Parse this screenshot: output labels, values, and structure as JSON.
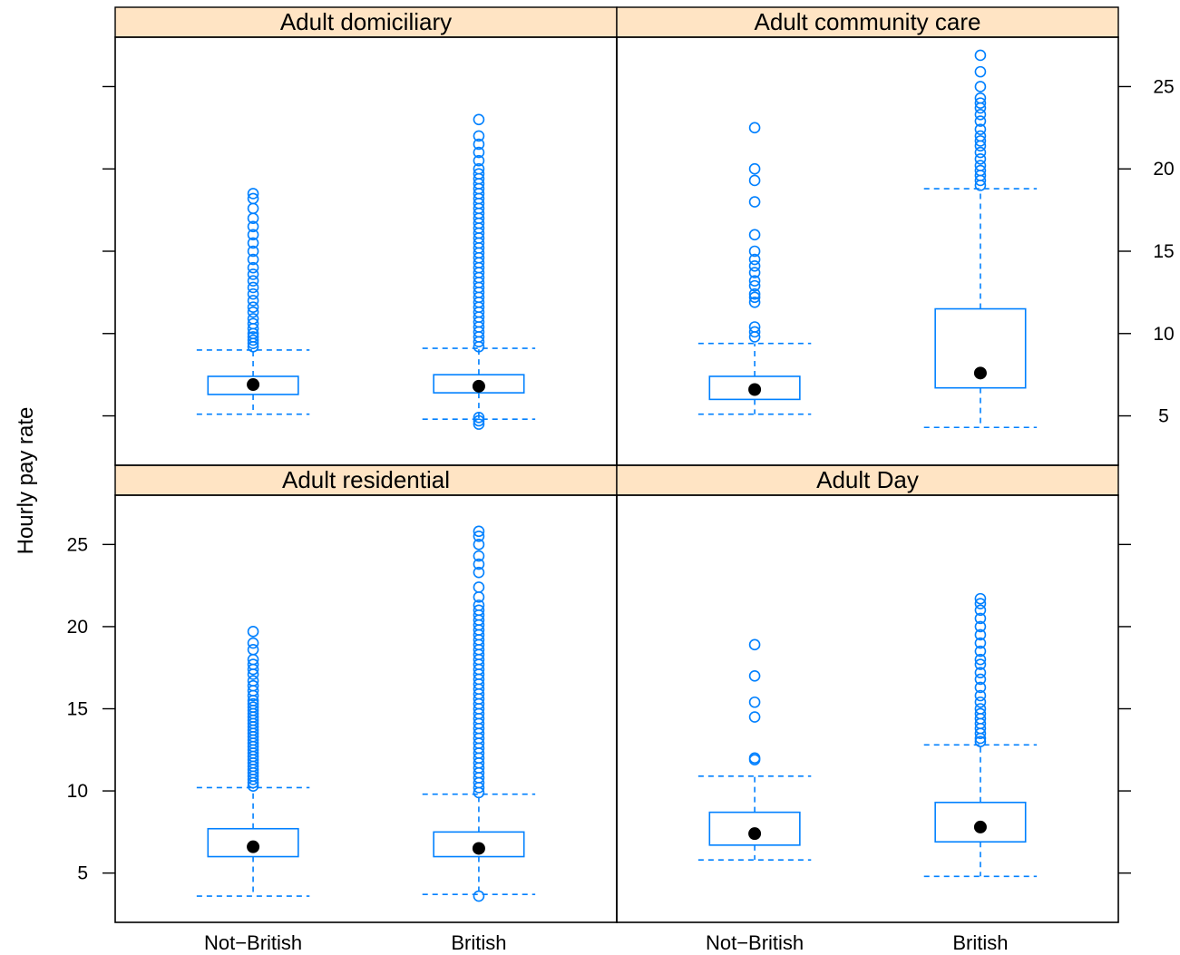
{
  "chart_data": {
    "type": "box",
    "ylabel": "Hourly pay rate",
    "ylim": [
      2,
      28
    ],
    "yticks": [
      5,
      10,
      15,
      20,
      25
    ],
    "categories": [
      "Not−British",
      "British"
    ],
    "panels": [
      {
        "title": "Adult residential",
        "boxes": [
          {
            "category": "Not−British",
            "whisker_low": 3.6,
            "q1": 6.0,
            "median": 6.6,
            "q3": 7.7,
            "whisker_high": 10.2,
            "outliers": [
              10.3,
              10.5,
              10.7,
              10.9,
              11.1,
              11.3,
              11.5,
              11.7,
              11.9,
              12.1,
              12.3,
              12.5,
              12.7,
              12.9,
              13.1,
              13.3,
              13.5,
              13.7,
              13.9,
              14.1,
              14.3,
              14.5,
              14.7,
              14.9,
              15.1,
              15.3,
              15.5,
              15.8,
              16.1,
              16.4,
              16.7,
              17.1,
              17.4,
              17.7,
              18.0,
              18.6,
              19.0,
              19.7
            ]
          },
          {
            "category": "British",
            "whisker_low": 3.7,
            "q1": 6.0,
            "median": 6.5,
            "q3": 7.5,
            "whisker_high": 9.8,
            "outliers": [
              3.6,
              9.9,
              10.2,
              10.5,
              10.8,
              11.1,
              11.4,
              11.7,
              12.0,
              12.3,
              12.6,
              12.9,
              13.2,
              13.5,
              13.8,
              14.1,
              14.4,
              14.7,
              15.0,
              15.3,
              15.6,
              15.9,
              16.2,
              16.5,
              16.8,
              17.1,
              17.4,
              17.7,
              18.0,
              18.3,
              18.6,
              18.9,
              19.2,
              19.5,
              19.8,
              20.1,
              20.4,
              20.7,
              21.0,
              21.3,
              21.8,
              22.4,
              23.3,
              23.8,
              24.3,
              25.0,
              25.5,
              25.8
            ]
          }
        ]
      },
      {
        "title": "Adult Day",
        "boxes": [
          {
            "category": "Not−British",
            "whisker_low": 5.8,
            "q1": 6.7,
            "median": 7.4,
            "q3": 8.7,
            "whisker_high": 10.9,
            "outliers": [
              11.9,
              12.0,
              14.5,
              15.4,
              17.0,
              18.9
            ]
          },
          {
            "category": "British",
            "whisker_low": 4.8,
            "q1": 6.9,
            "median": 7.8,
            "q3": 9.3,
            "whisker_high": 12.8,
            "outliers": [
              13.0,
              13.2,
              13.5,
              13.8,
              14.1,
              14.4,
              14.7,
              15.0,
              15.4,
              15.8,
              16.3,
              16.8,
              17.2,
              17.7,
              18.0,
              18.5,
              19.0,
              19.5,
              20.0,
              20.5,
              21.0,
              21.4,
              21.7
            ]
          }
        ]
      },
      {
        "title": "Adult domiciliary",
        "boxes": [
          {
            "category": "Not−British",
            "whisker_low": 5.1,
            "q1": 6.3,
            "median": 6.9,
            "q3": 7.4,
            "whisker_high": 9.0,
            "outliers": [
              9.2,
              9.4,
              9.6,
              9.8,
              10.0,
              10.3,
              10.6,
              10.9,
              11.3,
              11.6,
              12.0,
              12.4,
              12.8,
              13.2,
              13.6,
              14.0,
              14.5,
              15.0,
              15.5,
              16.0,
              16.5,
              17.0,
              17.6,
              18.2,
              18.5
            ]
          },
          {
            "category": "British",
            "whisker_low": 4.8,
            "q1": 6.4,
            "median": 6.8,
            "q3": 7.5,
            "whisker_high": 9.1,
            "outliers": [
              4.5,
              4.7,
              4.9,
              9.2,
              9.5,
              9.8,
              10.1,
              10.4,
              10.7,
              11.0,
              11.3,
              11.6,
              11.9,
              12.2,
              12.5,
              12.8,
              13.1,
              13.4,
              13.7,
              14.0,
              14.3,
              14.6,
              14.9,
              15.2,
              15.5,
              15.8,
              16.1,
              16.4,
              16.7,
              17.0,
              17.3,
              17.6,
              17.9,
              18.2,
              18.5,
              18.8,
              19.1,
              19.4,
              19.7,
              20.0,
              20.5,
              21.0,
              21.5,
              22.0,
              23.0
            ]
          }
        ]
      },
      {
        "title": "Adult community care",
        "boxes": [
          {
            "category": "Not−British",
            "whisker_low": 5.1,
            "q1": 6.0,
            "median": 6.6,
            "q3": 7.4,
            "whisker_high": 9.4,
            "outliers": [
              9.8,
              10.1,
              10.4,
              11.9,
              12.2,
              12.4,
              12.9,
              13.2,
              13.7,
              14.1,
              14.5,
              15.0,
              16.0,
              18.0,
              19.3,
              20.0,
              22.5
            ]
          },
          {
            "category": "British",
            "whisker_low": 4.3,
            "q1": 6.7,
            "median": 7.6,
            "q3": 11.5,
            "whisker_high": 18.8,
            "outliers": [
              19.0,
              19.3,
              19.6,
              19.9,
              20.2,
              20.6,
              21.0,
              21.4,
              21.7,
              22.0,
              22.4,
              22.9,
              23.3,
              23.7,
              24.0,
              24.3,
              25.0,
              25.9,
              26.9
            ]
          }
        ]
      }
    ]
  }
}
